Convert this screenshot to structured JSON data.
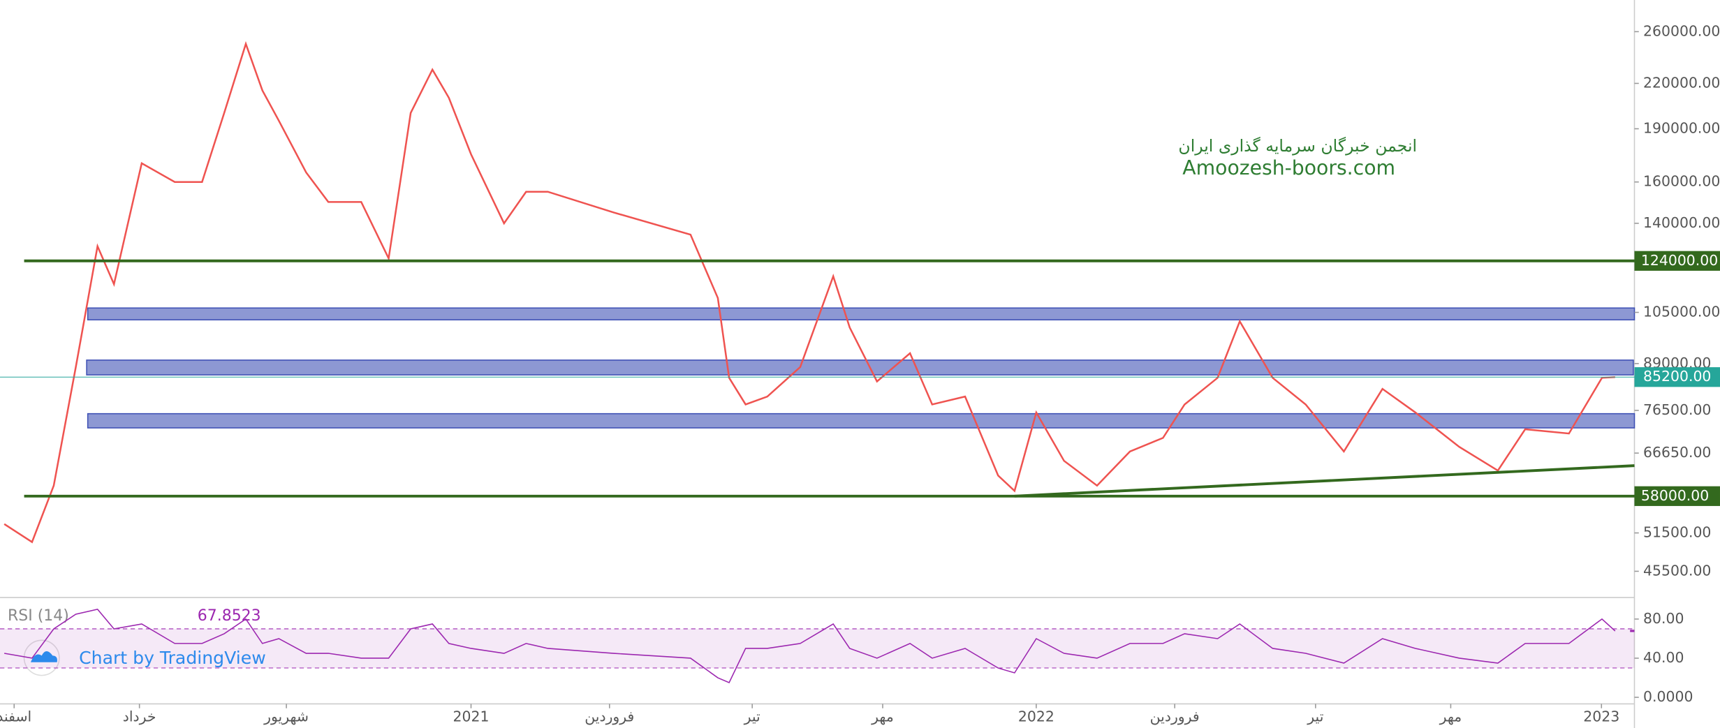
{
  "chart_data": [
    {
      "type": "line",
      "log_scale": true,
      "color": "#ef5350",
      "x": [
        2.09,
        2.68,
        3.14,
        3.61,
        4.07,
        4.42,
        5.01,
        5.71,
        6.29,
        6.76,
        7.22,
        7.57,
        7.92,
        8.5,
        8.97,
        9.67,
        10.25,
        10.72,
        11.18,
        11.53,
        12,
        12.7,
        13.17,
        13.63,
        15.03,
        16.66,
        17.24,
        17.48,
        17.83,
        18.29,
        18.99,
        19.69,
        20.04,
        20.62,
        21.32,
        21.79,
        22.49,
        23.19,
        23.54,
        24,
        24.59,
        25.29,
        25.99,
        26.69,
        27.15,
        27.85,
        28.32,
        29.02,
        29.72,
        30.53,
        31.35,
        32.05,
        32.98,
        33.8,
        34.38,
        35.31,
        36.01,
        36.29
      ],
      "values": [
        53000,
        50000,
        60000,
        88000,
        130000,
        115000,
        170000,
        160000,
        160000,
        200000,
        250000,
        215000,
        195000,
        165000,
        150000,
        150000,
        125000,
        200000,
        230000,
        210000,
        175000,
        140000,
        155000,
        155000,
        145000,
        135000,
        110000,
        85000,
        78000,
        80000,
        88000,
        118000,
        100000,
        84000,
        92000,
        78000,
        80000,
        62000,
        59000,
        76000,
        65000,
        60000,
        67000,
        70000,
        78000,
        85000,
        102000,
        85000,
        78000,
        67000,
        82000,
        76000,
        68000,
        63000,
        72000,
        71000,
        85000,
        85200
      ],
      "xlim": [
        2,
        36.7
      ],
      "xticks": [
        {
          "value": 2.3,
          "label": "اسفند"
        },
        {
          "value": 4.96,
          "label": "خرداد"
        },
        {
          "value": 8.08,
          "label": "شهریور"
        },
        {
          "value": 12,
          "label": "2021"
        },
        {
          "value": 14.94,
          "label": "فروردین"
        },
        {
          "value": 17.97,
          "label": "تیر"
        },
        {
          "value": 20.74,
          "label": "مهر"
        },
        {
          "value": 24,
          "label": "2022"
        },
        {
          "value": 26.94,
          "label": "فروردین"
        },
        {
          "value": 29.93,
          "label": "تیر"
        },
        {
          "value": 32.8,
          "label": "مهر"
        },
        {
          "value": 36,
          "label": "2023"
        }
      ],
      "ylim": [
        41800,
        288000
      ],
      "yticks": [
        {
          "value": 260000,
          "label": "260000.00"
        },
        {
          "value": 220000,
          "label": "220000.00"
        },
        {
          "value": 190000,
          "label": "190000.00"
        },
        {
          "value": 160000,
          "label": "160000.00"
        },
        {
          "value": 140000,
          "label": "140000.00"
        },
        {
          "value": 105000,
          "label": "105000.00"
        },
        {
          "value": 89000,
          "label": "89000.00"
        },
        {
          "value": 76500,
          "label": "76500.00"
        },
        {
          "value": 66650,
          "label": "66650.00"
        },
        {
          "value": 51500,
          "label": "51500.00"
        },
        {
          "value": 45500,
          "label": "45500.00"
        }
      ],
      "levels": [
        {
          "value": 124000,
          "label": "124000.00"
        },
        {
          "value": 58000,
          "label": "58000.00"
        }
      ],
      "zones": [
        [
          102500,
          106500
        ],
        [
          85800,
          90000
        ],
        [
          72300,
          75700
        ]
      ],
      "trendline": {
        "x": [
          23.54,
          36.7
        ],
        "values": [
          58000,
          64000
        ]
      },
      "last_price": {
        "value": 85200,
        "label": "85200.00"
      },
      "watermark": [
        "انجمن خبرگان سرمایه گذاری ایران",
        "Amoozesh-boors.com"
      ],
      "credit": "Chart by TradingView"
    },
    {
      "type": "line",
      "title": "RSI (14)",
      "color": "#9c27b0",
      "current": 67.8523,
      "value_label": "67.8523",
      "x": [
        2.09,
        2.68,
        3.14,
        3.61,
        4.07,
        4.42,
        5.01,
        5.71,
        6.29,
        6.76,
        7.22,
        7.57,
        7.92,
        8.5,
        8.97,
        9.67,
        10.25,
        10.72,
        11.18,
        11.53,
        12,
        12.7,
        13.17,
        13.63,
        15.03,
        16.66,
        17.24,
        17.48,
        17.83,
        18.29,
        18.99,
        19.69,
        20.04,
        20.62,
        21.32,
        21.79,
        22.49,
        23.19,
        23.54,
        24,
        24.59,
        25.29,
        25.99,
        26.69,
        27.15,
        27.85,
        28.32,
        29.02,
        29.72,
        30.53,
        31.35,
        32.05,
        32.98,
        33.8,
        34.38,
        35.31,
        36.01,
        36.29
      ],
      "values": [
        45,
        40,
        70,
        85,
        90,
        70,
        75,
        55,
        55,
        65,
        80,
        55,
        60,
        45,
        45,
        40,
        40,
        70,
        75,
        55,
        50,
        45,
        55,
        50,
        45,
        40,
        20,
        15,
        50,
        50,
        55,
        75,
        50,
        40,
        55,
        40,
        50,
        30,
        25,
        60,
        45,
        40,
        55,
        55,
        65,
        60,
        75,
        50,
        45,
        35,
        60,
        50,
        40,
        35,
        55,
        55,
        80,
        67.8523
      ],
      "ylim": [
        -6.7,
        102
      ],
      "yticks": [
        {
          "value": 80,
          "label": "80.00"
        },
        {
          "value": 40,
          "label": "40.00"
        },
        {
          "value": 0,
          "label": "0.0000"
        }
      ],
      "band": [
        30,
        70
      ]
    }
  ]
}
